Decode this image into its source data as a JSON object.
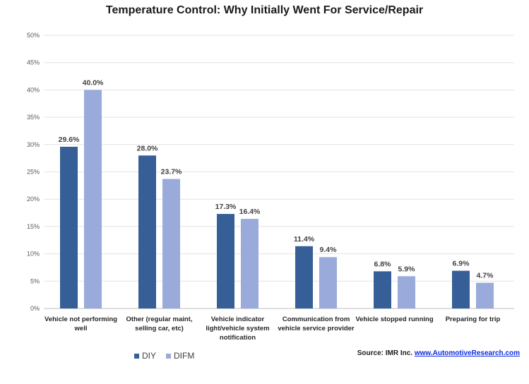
{
  "chart_data": {
    "type": "bar",
    "title": "Temperature Control: Why Initially Went For Service/Repair",
    "categories": [
      "Vehicle not performing well",
      "Other (regular maint, selling car, etc)",
      "Vehicle indicator light/vehicle system notification",
      "Communication from vehicle service provider",
      "Vehicle stopped running",
      "Preparing for trip"
    ],
    "series": [
      {
        "name": "DIY",
        "values": [
          29.6,
          28.0,
          17.3,
          11.4,
          6.8,
          6.9
        ],
        "color": "#365f97"
      },
      {
        "name": "DIFM",
        "values": [
          40.0,
          23.7,
          16.4,
          9.4,
          5.9,
          4.7
        ],
        "color": "#9aaada"
      }
    ],
    "ylim": [
      0,
      50
    ],
    "yticks": [
      0,
      5,
      10,
      15,
      20,
      25,
      30,
      35,
      40,
      45,
      50
    ],
    "ytick_suffix": "%",
    "grid": true,
    "legend_position": "bottom-left",
    "data_label_format": "one-decimal-percent"
  },
  "source": {
    "prefix": "Source: IMR Inc.",
    "link_text": "www.AutomotiveResearch.com"
  }
}
